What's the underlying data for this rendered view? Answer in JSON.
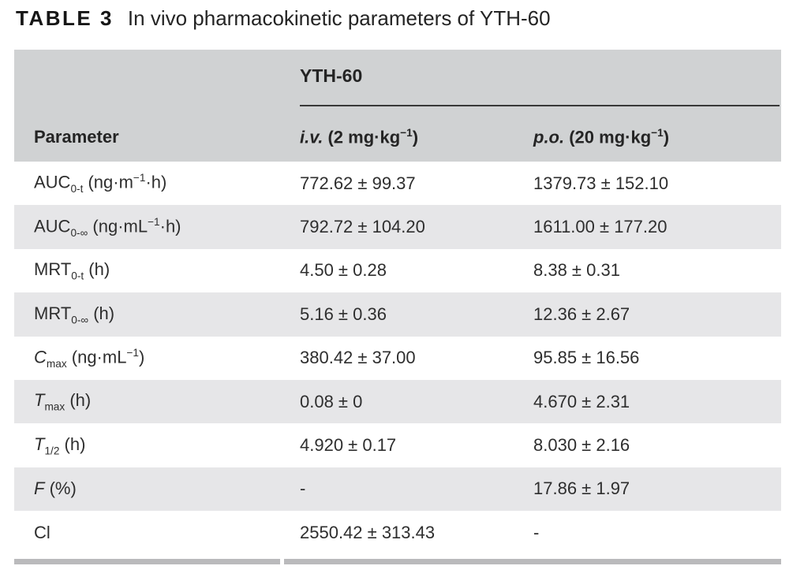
{
  "title": {
    "label": "TABLE 3",
    "text": "In vivo pharmacokinetic parameters of YTH-60"
  },
  "table": {
    "group_header": "YTH-60",
    "columns": {
      "parameter": "Parameter",
      "iv": [
        {
          "t": "i.v.",
          "s": "i"
        },
        {
          "t": " (2 mg·kg"
        },
        {
          "t": "−1",
          "s": "sup"
        },
        {
          "t": ")"
        }
      ],
      "po": [
        {
          "t": "p.o.",
          "s": "i"
        },
        {
          "t": " (20 mg·kg"
        },
        {
          "t": "−1",
          "s": "sup"
        },
        {
          "t": ")"
        }
      ]
    },
    "rows": [
      {
        "label": [
          {
            "t": "AUC"
          },
          {
            "t": "0-t",
            "s": "sub"
          },
          {
            "t": " (ng·m"
          },
          {
            "t": "−1",
            "s": "sup"
          },
          {
            "t": "·h)"
          }
        ],
        "iv": "772.62 ± 99.37",
        "po": "1379.73 ± 152.10"
      },
      {
        "label": [
          {
            "t": "AUC"
          },
          {
            "t": "0-∞",
            "s": "sub"
          },
          {
            "t": " (ng·mL"
          },
          {
            "t": "−1",
            "s": "sup"
          },
          {
            "t": "·h)"
          }
        ],
        "iv": "792.72 ± 104.20",
        "po": "1611.00 ± 177.20"
      },
      {
        "label": [
          {
            "t": "MRT"
          },
          {
            "t": "0-t",
            "s": "sub"
          },
          {
            "t": " (h)"
          }
        ],
        "iv": "4.50 ± 0.28",
        "po": "8.38 ± 0.31"
      },
      {
        "label": [
          {
            "t": "MRT"
          },
          {
            "t": "0-∞",
            "s": "sub"
          },
          {
            "t": " (h)"
          }
        ],
        "iv": "5.16 ± 0.36",
        "po": "12.36 ± 2.67"
      },
      {
        "label": [
          {
            "t": "C",
            "s": "i"
          },
          {
            "t": "max",
            "s": "sub"
          },
          {
            "t": " (ng·mL"
          },
          {
            "t": "−1",
            "s": "sup"
          },
          {
            "t": ")"
          }
        ],
        "iv": "380.42 ± 37.00",
        "po": "95.85 ± 16.56"
      },
      {
        "label": [
          {
            "t": "T",
            "s": "i"
          },
          {
            "t": "max",
            "s": "sub"
          },
          {
            "t": " (h)"
          }
        ],
        "iv": "0.08 ± 0",
        "po": "4.670 ± 2.31"
      },
      {
        "label": [
          {
            "t": "T",
            "s": "i"
          },
          {
            "t": "1/2",
            "s": "sub"
          },
          {
            "t": " (h)"
          }
        ],
        "iv": "4.920 ± 0.17",
        "po": "8.030 ± 2.16"
      },
      {
        "label": [
          {
            "t": "F",
            "s": "i"
          },
          {
            "t": " (%)"
          }
        ],
        "iv": "-",
        "po": "17.86 ± 1.97"
      },
      {
        "label": [
          {
            "t": "Cl"
          }
        ],
        "iv": "2550.42 ± 313.43",
        "po": "-"
      }
    ]
  },
  "colors": {
    "header_bg": "#d0d2d3",
    "row_alt_bg": "#e6e6e8",
    "bottom_bar": "#bababc",
    "rule": "#383838",
    "text": "#333333"
  }
}
